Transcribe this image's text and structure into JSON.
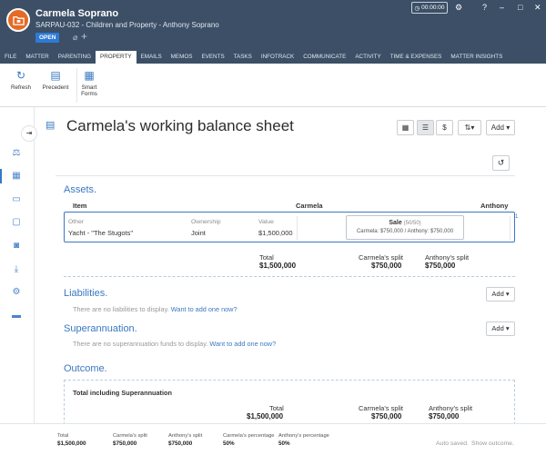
{
  "header": {
    "client_name": "Carmela Soprano",
    "matter_line": "SARPAU-032 - Children and Property - Anthony Soprano",
    "status": "OPEN",
    "timer": "00:00:00"
  },
  "tabs": [
    "FILE",
    "MATTER",
    "PARENTING",
    "PROPERTY",
    "EMAILS",
    "MEMOS",
    "EVENTS",
    "TASKS",
    "INFOTRACK",
    "COMMUNICATE",
    "ACTIVITY",
    "TIME & EXPENSES",
    "MATTER INSIGHTS"
  ],
  "ribbon": {
    "refresh": "Refresh",
    "precedent": "Precedent",
    "smart_forms_1": "Smart",
    "smart_forms_2": "Forms"
  },
  "page": {
    "title": "Carmela's working balance sheet",
    "add_label": "Add ▾"
  },
  "assets": {
    "title": "Assets.",
    "col_item": "Item",
    "col_carmela": "Carmela",
    "col_anthony": "Anthony",
    "row": {
      "type_label": "Other",
      "type_value": "Yacht - \"The Stugots\"",
      "ownership_label": "Ownership",
      "ownership_value": "Joint",
      "value_label": "Value",
      "value_value": "$1,500,000",
      "sale_title": "Sale",
      "sale_ratio": "(50/50)",
      "sale_detail": "Carmela: $750,000 / Anthony: $750,000",
      "badge": "1"
    },
    "total_label": "Total",
    "total_value": "$1,500,000",
    "carmela_split_label": "Carmela's split",
    "carmela_split_value": "$750,000",
    "anthony_split_label": "Anthony's split",
    "anthony_split_value": "$750,000"
  },
  "liabilities": {
    "title": "Liabilities.",
    "empty": "There are no liabilities to display.",
    "link": "Want to add one now?",
    "add": "Add ▾"
  },
  "superannuation": {
    "title": "Superannuation.",
    "empty": "There are no superannuation funds to display.",
    "link": "Want to add one now?",
    "add": "Add ▾"
  },
  "outcome": {
    "title": "Outcome.",
    "box_title": "Total including Superannuation",
    "total_label": "Total",
    "total_value": "$1,500,000",
    "carmela_split_label": "Carmela's split",
    "carmela_split_value": "$750,000",
    "anthony_split_label": "Anthony's split",
    "anthony_split_value": "$750,000"
  },
  "footer": {
    "total_label": "Total",
    "total_value": "$1,500,000",
    "carmela_split_label": "Carmela's split",
    "carmela_split_value": "$750,000",
    "anthony_split_label": "Anthony's split",
    "anthony_split_value": "$750,000",
    "carmela_pct_label": "Carmela's percentage",
    "carmela_pct_value": "50%",
    "anthony_pct_label": "Anthony's percentage",
    "anthony_pct_value": "50%",
    "autosaved": "Auto saved.",
    "show_outcome": "Show outcome."
  }
}
